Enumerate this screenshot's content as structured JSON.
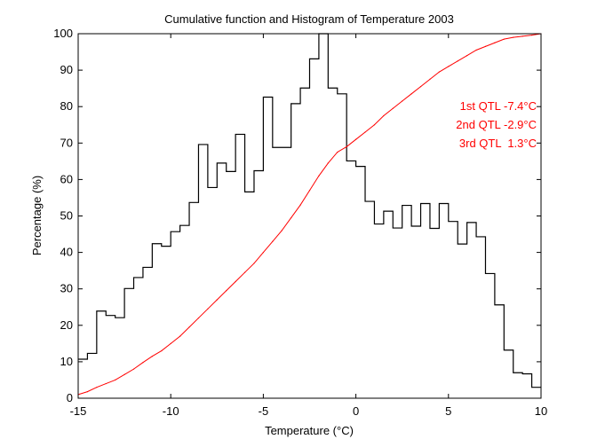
{
  "chart_data": {
    "type": "line",
    "title": "Cumulative function and Histogram of Temperature 2003",
    "xlabel": "Temperature (°C)",
    "ylabel": "Percentage (%)",
    "xlim": [
      -15,
      10
    ],
    "ylim": [
      0,
      100
    ],
    "xticks": [
      -15,
      -10,
      -5,
      0,
      5,
      10
    ],
    "yticks": [
      0,
      10,
      20,
      30,
      40,
      50,
      60,
      70,
      80,
      90,
      100
    ],
    "grid": false,
    "colors": {
      "histogram": "#000000",
      "cumulative": "#ff0000",
      "annotation": "#ff0000",
      "axes": "#000000"
    },
    "series": [
      {
        "name": "histogram",
        "style": "step",
        "bin_width": 0.5,
        "x_start": -15,
        "values": [
          10.7,
          12.3,
          23.9,
          22.7,
          22.1,
          30.1,
          33.1,
          35.9,
          42.4,
          41.7,
          45.7,
          47.4,
          53.7,
          69.6,
          57.8,
          64.5,
          62.2,
          72.4,
          56.6,
          62.4,
          82.6,
          68.8,
          68.8,
          80.8,
          85.1,
          93.1,
          100,
          85.1,
          83.5,
          65.1,
          63.6,
          54.0,
          47.8,
          51.3,
          46.7,
          52.9,
          47.2,
          53.4,
          46.6,
          53.4,
          48.5,
          42.3,
          48.2,
          44.3,
          34.2,
          25.6,
          13.2,
          7.0,
          6.7,
          3.0
        ]
      },
      {
        "name": "cumulative",
        "style": "line",
        "x": [
          -15,
          -14.5,
          -14,
          -13.5,
          -13,
          -12.5,
          -12,
          -11.5,
          -11,
          -10.5,
          -10,
          -9.5,
          -9,
          -8.5,
          -8,
          -7.5,
          -7,
          -6.5,
          -6,
          -5.5,
          -5,
          -4.5,
          -4,
          -3.5,
          -3,
          -2.5,
          -2,
          -1.5,
          -1,
          -0.5,
          0,
          0.5,
          1,
          1.5,
          2,
          2.5,
          3,
          3.5,
          4,
          4.5,
          5,
          5.5,
          6,
          6.5,
          7,
          7.5,
          8,
          8.5,
          9,
          9.5,
          10
        ],
        "values": [
          1,
          1.8,
          3,
          4,
          5,
          6.5,
          8,
          9.8,
          11.5,
          13,
          15,
          17,
          19.5,
          22,
          24.5,
          27,
          29.5,
          32,
          34.5,
          37,
          40,
          43,
          46,
          49.5,
          53,
          57,
          61,
          64.5,
          67.5,
          69,
          71,
          73,
          75,
          77.5,
          79.5,
          81.5,
          83.5,
          85.5,
          87.5,
          89.5,
          91,
          92.5,
          94,
          95.5,
          96.5,
          97.5,
          98.5,
          99,
          99.3,
          99.6,
          100
        ]
      }
    ],
    "annotations": [
      "1st QTL -7.4°C",
      "2nd QTL -2.9°C",
      "3rd QTL  1.3°C"
    ]
  }
}
